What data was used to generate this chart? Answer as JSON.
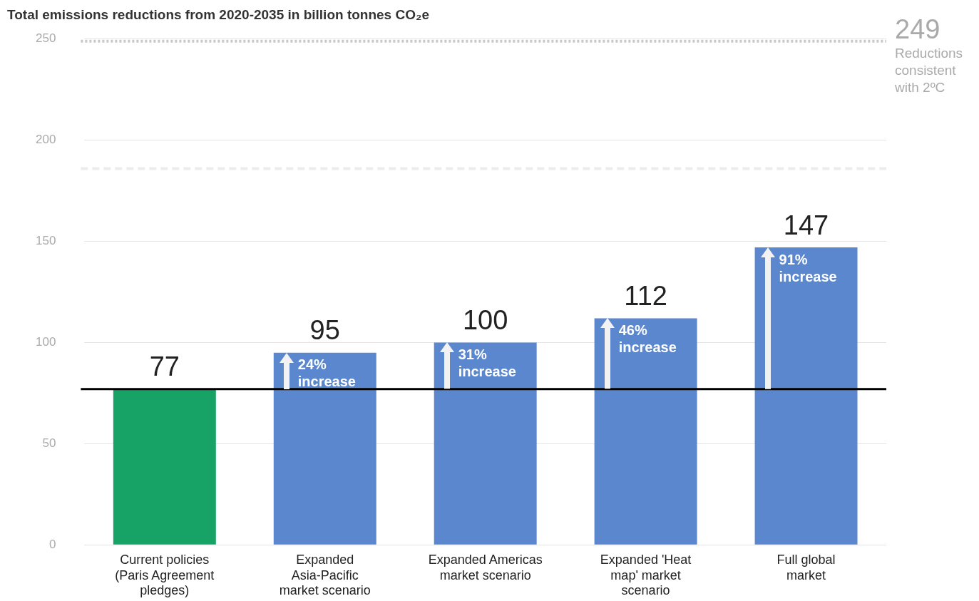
{
  "chart_data": {
    "type": "bar",
    "title": "Total emissions reductions from 2020-2035 in billion tonnes CO₂e",
    "categories": [
      "Current policies (Paris Agreement pledges)",
      "Expanded Asia-Pacific market scenario",
      "Expanded Americas market scenario",
      "Expanded 'Heat map' market scenario",
      "Full global market"
    ],
    "values": [
      77,
      95,
      100,
      112,
      147
    ],
    "colors": [
      "#18a366",
      "#5b87cf",
      "#5b87cf",
      "#5b87cf",
      "#5b87cf"
    ],
    "data_labels": true,
    "ylim": [
      0,
      250
    ],
    "yticks": [
      0,
      50,
      100,
      150,
      200,
      250
    ],
    "grid": "y",
    "legend": false,
    "ref_lines": [
      {
        "axis": "y",
        "value": 77,
        "label": null,
        "color": "#000000",
        "line_style": "solid"
      },
      {
        "axis": "y",
        "value": 249,
        "label": "249 Reductions consistent with 2ºC",
        "color": "#c8c8c8",
        "line_style": "dotted"
      },
      {
        "axis": "y",
        "value": 186,
        "label": null,
        "color": "#ececec",
        "line_style": "dashed"
      }
    ],
    "annotations": [
      {
        "text": "24% increase",
        "x": "Expanded Asia-Pacific market scenario",
        "y": 95
      },
      {
        "text": "31% increase",
        "x": "Expanded Americas market scenario",
        "y": 100
      },
      {
        "text": "46% increase",
        "x": "Expanded 'Heat map' market scenario",
        "y": 112
      },
      {
        "text": "91% increase",
        "x": "Full global market",
        "y": 147
      }
    ]
  }
}
